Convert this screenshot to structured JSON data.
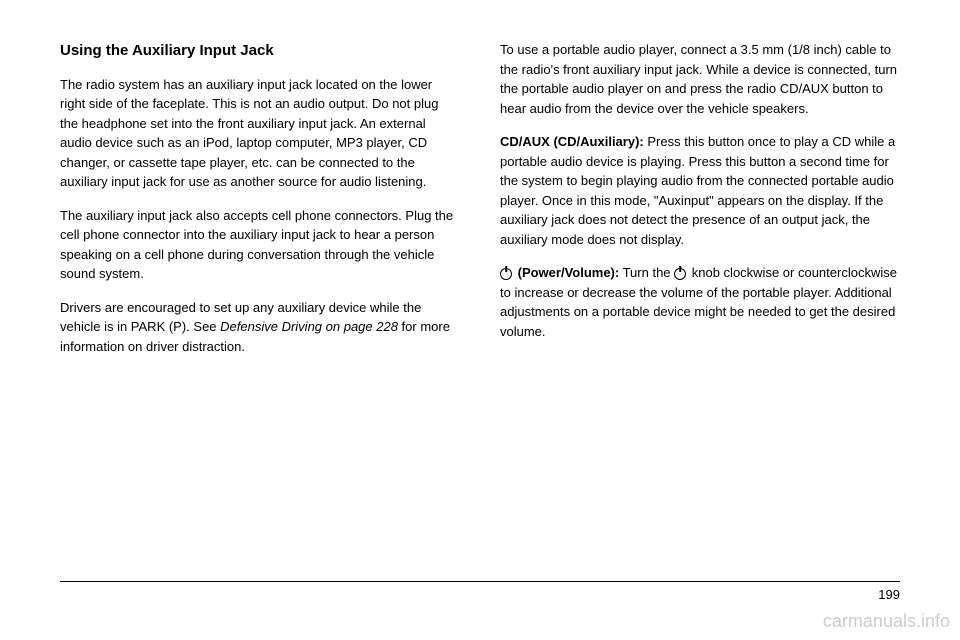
{
  "heading": "Using the Auxiliary Input Jack",
  "left_column": {
    "p1": "The radio system has an auxiliary input jack located on the lower right side of the faceplate. This is not an audio output. Do not plug the headphone set into the front auxiliary input jack. An external audio device such as an iPod, laptop computer, MP3 player, CD changer, or cassette tape player, etc. can be connected to the auxiliary input jack for use as another source for audio listening.",
    "p2": "The auxiliary input jack also accepts cell phone connectors. Plug the cell phone connector into the auxiliary input jack to hear a person speaking on a cell phone during conversation through the vehicle sound system.",
    "p3_part1": "Drivers are encouraged to set up any auxiliary device while the vehicle is in PARK (P). See ",
    "p3_italic": "Defensive Driving on page 228",
    "p3_part2": " for more information on driver distraction."
  },
  "right_column": {
    "p1": "To use a portable audio player, connect a 3.5 mm (1/8 inch) cable to the radio's front auxiliary input jack. While a device is connected, turn the portable audio player on and press the radio CD/AUX button to hear audio from the device over the vehicle speakers.",
    "p2_bold": "CD/AUX (CD/Auxiliary):",
    "p2_text": " Press this button once to play a CD while a portable audio device is playing. Press this button a second time for the system to begin playing audio from the connected portable audio player. Once in this mode, \"Auxinput\" appears on the display. If the auxiliary jack does not detect the presence of an output jack, the auxiliary mode does not display.",
    "p3_bold": " (Power/Volume):",
    "p3_text_part1": " Turn the ",
    "p3_text_part2": " knob clockwise or counterclockwise to increase or decrease the volume of the portable player. Additional adjustments on a portable device might be needed to get the desired volume."
  },
  "page_number": "199",
  "watermark": "carmanuals.info"
}
